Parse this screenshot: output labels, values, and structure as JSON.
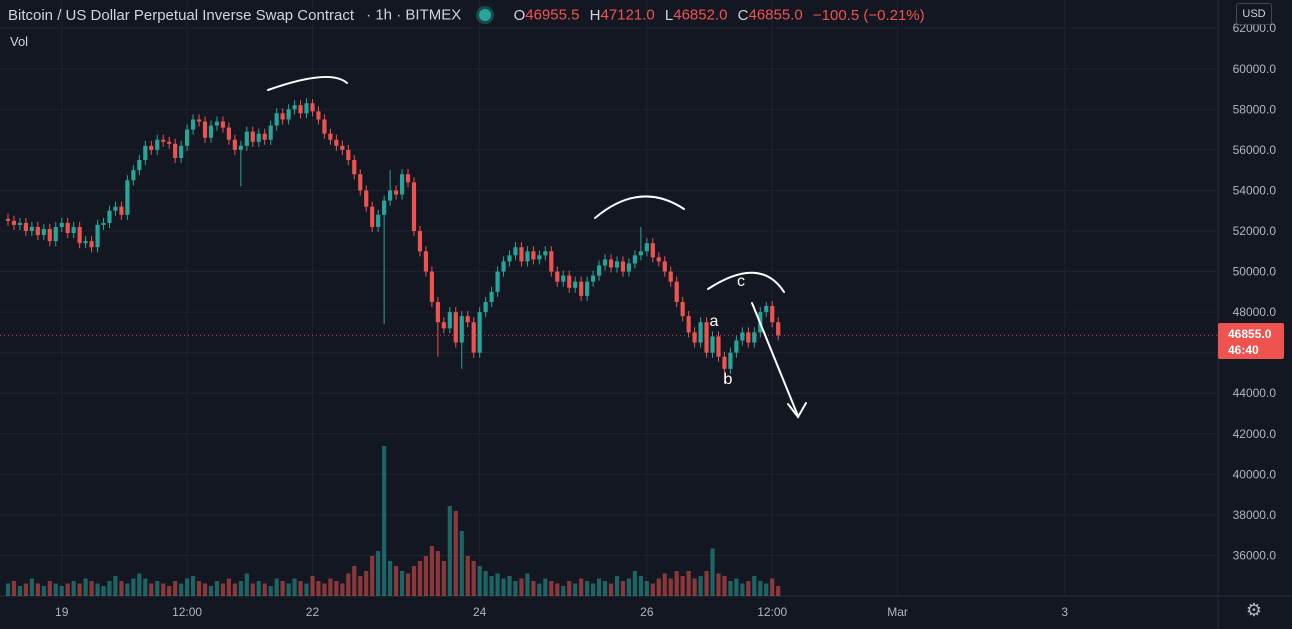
{
  "header": {
    "symbol_title": "Bitcoin / US Dollar Perpetual Inverse Swap Contract",
    "interval": "1h",
    "exchange": "BITMEX",
    "separator": "·",
    "live_indicator_color": "#26a69a",
    "ohlc": {
      "open_label": "O",
      "open": "46955.5",
      "high_label": "H",
      "high": "47121.0",
      "low_label": "L",
      "low": "46852.0",
      "close_label": "C",
      "close": "46855.0",
      "change": "−100.5 (−0.21%)"
    }
  },
  "volume_label": "Vol",
  "currency_badge": "USD",
  "last_price_tag": {
    "price": "46855.0",
    "countdown": "46:40",
    "color": "#ef5350"
  },
  "settings_icon": "gear-icon",
  "colors": {
    "background": "#131722",
    "up": "#26a69a",
    "down": "#ef5350",
    "grid": "#1e222d",
    "annotation": "#ffffff"
  },
  "annotations": {
    "wave_labels": [
      "a",
      "b",
      "c"
    ],
    "arrow": "down-arrow"
  },
  "chart_data": {
    "type": "candlestick",
    "interval": "1h",
    "grid": true,
    "price_axis": {
      "ticks": [
        36000,
        38000,
        40000,
        42000,
        44000,
        46000,
        48000,
        50000,
        52000,
        54000,
        56000,
        58000,
        60000,
        62000
      ],
      "tick_labels": [
        "36000.0",
        "38000.0",
        "40000.0",
        "42000.0",
        "44000.0",
        "",
        "48000.0",
        "50000.0",
        "52000.0",
        "54000.0",
        "56000.0",
        "58000.0",
        "60000.0",
        "62000.0"
      ],
      "range": [
        34000,
        62800
      ]
    },
    "time_axis": {
      "tick_labels": [
        "19",
        "12:00",
        "22",
        "24",
        "26",
        "12:00",
        "Mar",
        "3"
      ],
      "tick_index": [
        9,
        30,
        51,
        79,
        107,
        128,
        149,
        177
      ],
      "visible_bars": 204
    },
    "current_price": 46855.0,
    "price_series": {
      "name": "BTC/USD 1h",
      "close_path": [
        52500,
        52300,
        52400,
        52000,
        52200,
        51800,
        52100,
        51500,
        52200,
        52400,
        51900,
        52200,
        51400,
        51500,
        51200,
        52300,
        52400,
        53000,
        53200,
        52800,
        54500,
        55000,
        55500,
        56200,
        56000,
        56500,
        56400,
        56300,
        55600,
        56200,
        57000,
        57500,
        57400,
        56600,
        57200,
        57400,
        57100,
        56500,
        56000,
        56200,
        56900,
        56400,
        56800,
        56500,
        57200,
        57800,
        57500,
        58000,
        58200,
        57800,
        58300,
        57900,
        57500,
        56800,
        56500,
        56200,
        56000,
        55500,
        54800,
        54000,
        53200,
        52200,
        52800,
        53500,
        54000,
        53800,
        54800,
        54400,
        52000,
        51000,
        50000,
        48500,
        47500,
        47200,
        48000,
        46500,
        47800,
        47500,
        46000,
        48000,
        48500,
        49000,
        50000,
        50500,
        50800,
        51200,
        50500,
        51000,
        50600,
        50800,
        51000,
        50000,
        49500,
        49800,
        49200,
        49500,
        48800,
        49500,
        49800,
        50300,
        50600,
        50200,
        50500,
        50000,
        50400,
        50800,
        51000,
        51400,
        50700,
        50500,
        50000,
        49500,
        48500,
        47800,
        47000,
        46500,
        47500,
        46000,
        46800,
        45800,
        45200,
        46000,
        46600,
        47000,
        46500,
        47000,
        48000,
        48300,
        47500,
        46855
      ],
      "low_wicks": [
        [
          39,
          54200
        ],
        [
          63,
          47400
        ],
        [
          72,
          45800
        ],
        [
          76,
          45200
        ],
        [
          120,
          44500
        ]
      ],
      "high_wicks": [
        [
          51,
          58500
        ],
        [
          64,
          55000
        ],
        [
          106,
          52200
        ],
        [
          127,
          48500
        ]
      ]
    },
    "volume_series": {
      "name": "Vol",
      "relative_values": [
        0.5,
        0.6,
        0.4,
        0.5,
        0.7,
        0.5,
        0.4,
        0.6,
        0.5,
        0.4,
        0.5,
        0.6,
        0.5,
        0.7,
        0.6,
        0.5,
        0.4,
        0.6,
        0.8,
        0.6,
        0.5,
        0.7,
        0.9,
        0.7,
        0.5,
        0.6,
        0.5,
        0.4,
        0.6,
        0.5,
        0.7,
        0.8,
        0.6,
        0.5,
        0.4,
        0.6,
        0.5,
        0.7,
        0.5,
        0.6,
        0.9,
        0.5,
        0.6,
        0.5,
        0.4,
        0.7,
        0.6,
        0.5,
        0.7,
        0.6,
        0.5,
        0.8,
        0.6,
        0.5,
        0.7,
        0.6,
        0.5,
        0.9,
        1.2,
        0.8,
        1.0,
        1.6,
        1.8,
        6.0,
        1.4,
        1.2,
        1.0,
        0.9,
        1.2,
        1.4,
        1.6,
        2.0,
        1.8,
        1.4,
        3.6,
        3.4,
        2.6,
        1.6,
        1.4,
        1.2,
        1.0,
        0.8,
        0.9,
        0.7,
        0.8,
        0.6,
        0.7,
        0.9,
        0.6,
        0.5,
        0.7,
        0.6,
        0.5,
        0.4,
        0.6,
        0.5,
        0.7,
        0.6,
        0.5,
        0.7,
        0.6,
        0.5,
        0.8,
        0.6,
        0.7,
        1.0,
        0.8,
        0.6,
        0.5,
        0.7,
        0.9,
        0.7,
        1.0,
        0.8,
        1.0,
        0.7,
        0.8,
        1.0,
        1.9,
        0.9,
        0.8,
        0.6,
        0.7,
        0.5,
        0.6,
        0.8,
        0.6,
        0.5,
        0.7,
        0.4
      ]
    }
  }
}
